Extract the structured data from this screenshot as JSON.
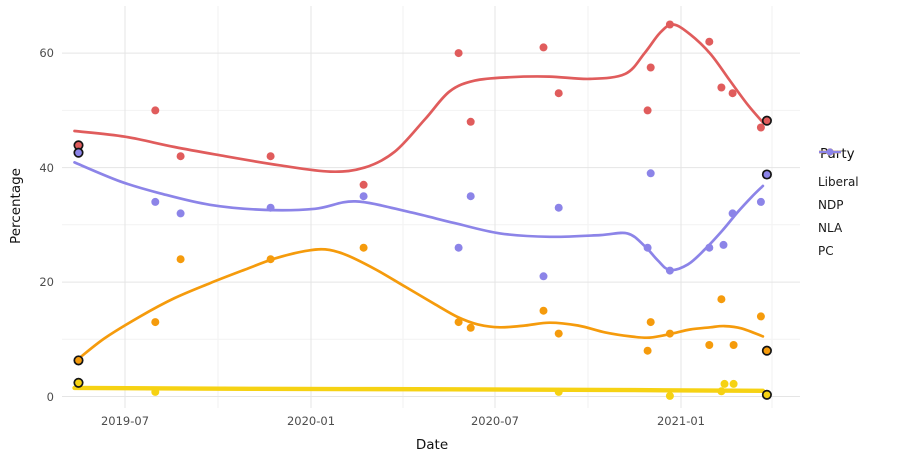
{
  "figure": {
    "background": "#ffffff",
    "text_color": "#4d4d4d",
    "grid_major_color": "#e5e5e5",
    "grid_minor_color": "#f2f2f2"
  },
  "chart_data": {
    "type": "scatter",
    "description": "Party polling percentages over time with loess smoothed trend lines; black-circled points are election results",
    "title": "",
    "xlabel": "Date",
    "ylabel": "Percentage",
    "legend_title": "Party",
    "legend_position": "right",
    "grid": true,
    "ylim": [
      0,
      68
    ],
    "y_ticks": [
      0,
      20,
      40,
      60
    ],
    "y_minor_ticks": [
      10,
      30,
      50
    ],
    "x_tick_labels": [
      "2019-07",
      "2020-01",
      "2020-07",
      "2021-01"
    ],
    "x_tick_dates": [
      "2019-07-01",
      "2020-01-01",
      "2020-07-01",
      "2021-01-01"
    ],
    "x_minor_dates": [
      "2019-10-01",
      "2020-04-01",
      "2020-10-01",
      "2021-04-01"
    ],
    "election_marker_stroke": "#141414",
    "series": [
      {
        "name": "Liberal",
        "color": "#E05C5C",
        "line_width": 2.7,
        "points": [
          {
            "date": "2019-05-16",
            "value": 43.9,
            "election": true
          },
          {
            "date": "2019-07-31",
            "value": 50
          },
          {
            "date": "2019-08-25",
            "value": 42
          },
          {
            "date": "2019-11-22",
            "value": 42
          },
          {
            "date": "2020-02-22",
            "value": 37
          },
          {
            "date": "2020-05-26",
            "value": 60
          },
          {
            "date": "2020-06-07",
            "value": 48
          },
          {
            "date": "2020-08-18",
            "value": 61
          },
          {
            "date": "2020-09-02",
            "value": 53
          },
          {
            "date": "2020-11-29",
            "value": 50
          },
          {
            "date": "2020-12-02",
            "value": 57.5
          },
          {
            "date": "2020-12-21",
            "value": 65
          },
          {
            "date": "2021-01-29",
            "value": 62
          },
          {
            "date": "2021-02-10",
            "value": 54
          },
          {
            "date": "2021-02-21",
            "value": 53
          },
          {
            "date": "2021-03-21",
            "value": 47
          },
          {
            "date": "2021-03-27",
            "value": 48.2,
            "election": true
          }
        ],
        "trend": [
          {
            "date": "2019-05-12",
            "value": 46.4
          },
          {
            "date": "2019-07-01",
            "value": 45.4
          },
          {
            "date": "2019-08-19",
            "value": 43.6
          },
          {
            "date": "2019-10-08",
            "value": 42.0
          },
          {
            "date": "2019-12-01",
            "value": 40.4
          },
          {
            "date": "2020-01-20",
            "value": 39.3
          },
          {
            "date": "2020-02-23",
            "value": 40.0
          },
          {
            "date": "2020-03-24",
            "value": 42.8
          },
          {
            "date": "2020-04-23",
            "value": 48.5
          },
          {
            "date": "2020-05-17",
            "value": 53.3
          },
          {
            "date": "2020-06-11",
            "value": 55.2
          },
          {
            "date": "2020-07-16",
            "value": 55.8
          },
          {
            "date": "2020-08-24",
            "value": 55.9
          },
          {
            "date": "2020-10-03",
            "value": 55.5
          },
          {
            "date": "2020-11-07",
            "value": 56.4
          },
          {
            "date": "2020-11-26",
            "value": 60.0
          },
          {
            "date": "2020-12-11",
            "value": 63.5
          },
          {
            "date": "2020-12-24",
            "value": 65.0
          },
          {
            "date": "2021-01-10",
            "value": 63.3
          },
          {
            "date": "2021-01-30",
            "value": 59.9
          },
          {
            "date": "2021-02-18",
            "value": 55.3
          },
          {
            "date": "2021-03-08",
            "value": 51.0
          },
          {
            "date": "2021-03-23",
            "value": 47.9
          }
        ]
      },
      {
        "name": "NDP",
        "color": "#F59B0C",
        "line_width": 2.7,
        "points": [
          {
            "date": "2019-05-16",
            "value": 6.3,
            "election": true
          },
          {
            "date": "2019-07-31",
            "value": 13
          },
          {
            "date": "2019-08-25",
            "value": 24
          },
          {
            "date": "2019-11-22",
            "value": 24
          },
          {
            "date": "2020-02-22",
            "value": 26
          },
          {
            "date": "2020-05-26",
            "value": 13
          },
          {
            "date": "2020-06-07",
            "value": 12
          },
          {
            "date": "2020-08-18",
            "value": 15
          },
          {
            "date": "2020-09-02",
            "value": 11
          },
          {
            "date": "2020-11-29",
            "value": 8
          },
          {
            "date": "2020-12-02",
            "value": 13
          },
          {
            "date": "2020-12-21",
            "value": 11
          },
          {
            "date": "2021-01-29",
            "value": 9
          },
          {
            "date": "2021-02-10",
            "value": 17
          },
          {
            "date": "2021-02-22",
            "value": 9
          },
          {
            "date": "2021-03-21",
            "value": 14
          },
          {
            "date": "2021-03-27",
            "value": 8.0,
            "election": true
          }
        ],
        "trend": [
          {
            "date": "2019-05-16",
            "value": 6.6
          },
          {
            "date": "2019-06-11",
            "value": 10.2
          },
          {
            "date": "2019-07-16",
            "value": 14.0
          },
          {
            "date": "2019-08-19",
            "value": 17.2
          },
          {
            "date": "2019-09-23",
            "value": 19.8
          },
          {
            "date": "2019-10-28",
            "value": 22.2
          },
          {
            "date": "2019-11-26",
            "value": 24.1
          },
          {
            "date": "2019-12-26",
            "value": 25.4
          },
          {
            "date": "2020-01-15",
            "value": 25.7
          },
          {
            "date": "2020-02-04",
            "value": 24.8
          },
          {
            "date": "2020-03-04",
            "value": 22.3
          },
          {
            "date": "2020-04-03",
            "value": 19.2
          },
          {
            "date": "2020-05-03",
            "value": 16.1
          },
          {
            "date": "2020-05-25",
            "value": 13.9
          },
          {
            "date": "2020-06-14",
            "value": 12.6
          },
          {
            "date": "2020-07-06",
            "value": 12.1
          },
          {
            "date": "2020-07-31",
            "value": 12.4
          },
          {
            "date": "2020-08-24",
            "value": 12.9
          },
          {
            "date": "2020-09-21",
            "value": 12.4
          },
          {
            "date": "2020-10-18",
            "value": 11.2
          },
          {
            "date": "2020-11-12",
            "value": 10.5
          },
          {
            "date": "2020-12-01",
            "value": 10.3
          },
          {
            "date": "2020-12-21",
            "value": 10.9
          },
          {
            "date": "2021-01-10",
            "value": 11.7
          },
          {
            "date": "2021-01-30",
            "value": 12.1
          },
          {
            "date": "2021-02-13",
            "value": 12.3
          },
          {
            "date": "2021-03-02",
            "value": 11.9
          },
          {
            "date": "2021-03-23",
            "value": 10.5
          }
        ]
      },
      {
        "name": "NLA",
        "color": "#F6D213",
        "line_width": 4.4,
        "points": [
          {
            "date": "2019-05-16",
            "value": 2.4,
            "election": true
          },
          {
            "date": "2019-07-31",
            "value": 0.8
          },
          {
            "date": "2020-09-02",
            "value": 0.8
          },
          {
            "date": "2020-12-21",
            "value": 0.1
          },
          {
            "date": "2021-02-10",
            "value": 0.9
          },
          {
            "date": "2021-02-13",
            "value": 2.2
          },
          {
            "date": "2021-02-22",
            "value": 2.2
          },
          {
            "date": "2021-03-27",
            "value": 0.3,
            "election": true
          }
        ],
        "trend": [
          {
            "date": "2019-05-12",
            "value": 1.5
          },
          {
            "date": "2019-11-02",
            "value": 1.35
          },
          {
            "date": "2020-05-17",
            "value": 1.25
          },
          {
            "date": "2020-10-13",
            "value": 1.15
          },
          {
            "date": "2021-03-23",
            "value": 1.0
          }
        ]
      },
      {
        "name": "PC",
        "color": "#8C84E8",
        "line_width": 2.7,
        "points": [
          {
            "date": "2019-05-16",
            "value": 42.6,
            "election": true
          },
          {
            "date": "2019-07-31",
            "value": 34
          },
          {
            "date": "2019-08-25",
            "value": 32
          },
          {
            "date": "2019-11-22",
            "value": 33
          },
          {
            "date": "2020-02-22",
            "value": 35
          },
          {
            "date": "2020-05-26",
            "value": 26
          },
          {
            "date": "2020-06-07",
            "value": 35
          },
          {
            "date": "2020-08-18",
            "value": 21
          },
          {
            "date": "2020-09-02",
            "value": 33
          },
          {
            "date": "2020-11-29",
            "value": 26
          },
          {
            "date": "2020-12-02",
            "value": 39
          },
          {
            "date": "2020-12-21",
            "value": 22
          },
          {
            "date": "2021-01-29",
            "value": 26
          },
          {
            "date": "2021-02-12",
            "value": 26.5
          },
          {
            "date": "2021-02-21",
            "value": 32
          },
          {
            "date": "2021-03-21",
            "value": 34
          },
          {
            "date": "2021-03-27",
            "value": 38.8,
            "election": true
          }
        ],
        "trend": [
          {
            "date": "2019-05-12",
            "value": 40.9
          },
          {
            "date": "2019-06-26",
            "value": 37.6
          },
          {
            "date": "2019-08-05",
            "value": 35.5
          },
          {
            "date": "2019-09-23",
            "value": 33.5
          },
          {
            "date": "2019-11-16",
            "value": 32.6
          },
          {
            "date": "2020-01-05",
            "value": 32.8
          },
          {
            "date": "2020-02-14",
            "value": 34.1
          },
          {
            "date": "2020-04-08",
            "value": 32.2
          },
          {
            "date": "2020-05-22",
            "value": 30.3
          },
          {
            "date": "2020-07-06",
            "value": 28.5
          },
          {
            "date": "2020-08-24",
            "value": 27.9
          },
          {
            "date": "2020-10-13",
            "value": 28.2
          },
          {
            "date": "2020-11-09",
            "value": 28.5
          },
          {
            "date": "2020-11-26",
            "value": 26.3
          },
          {
            "date": "2020-12-09",
            "value": 23.8
          },
          {
            "date": "2020-12-21",
            "value": 22.1
          },
          {
            "date": "2021-01-08",
            "value": 23.1
          },
          {
            "date": "2021-01-25",
            "value": 25.8
          },
          {
            "date": "2021-02-11",
            "value": 29.0
          },
          {
            "date": "2021-02-26",
            "value": 32.2
          },
          {
            "date": "2021-03-12",
            "value": 34.9
          },
          {
            "date": "2021-03-23",
            "value": 36.8
          }
        ]
      }
    ]
  }
}
